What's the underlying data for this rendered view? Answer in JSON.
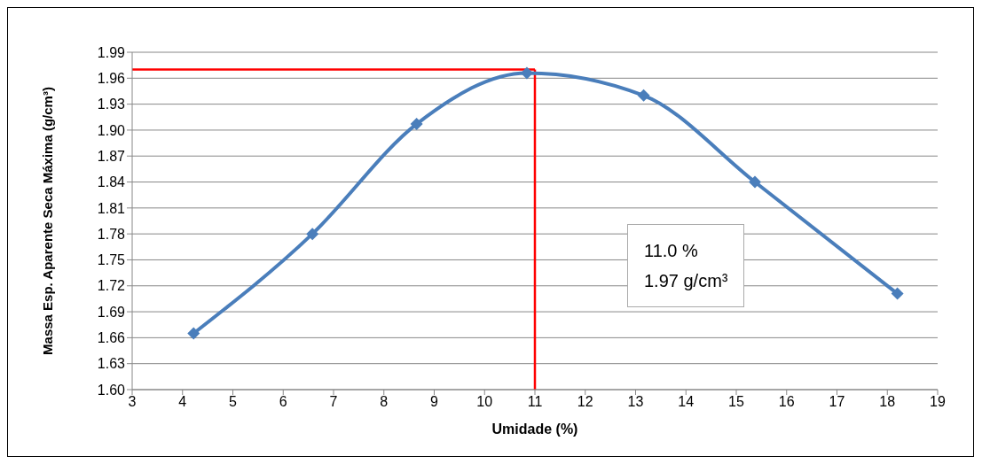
{
  "chart_data": {
    "type": "line",
    "xlabel": "Umidade (%)",
    "ylabel": "Massa Esp. Aparente Seca Máxima (g/cm³)",
    "x": [
      4.22,
      6.58,
      8.65,
      10.84,
      13.16,
      15.37,
      18.2
    ],
    "series": [
      {
        "color": "#4a7ebb",
        "values": [
          1.665,
          1.78,
          1.907,
          1.966,
          1.94,
          1.84,
          1.711
        ]
      }
    ],
    "xlim": [
      3,
      19
    ],
    "xticks": [
      3,
      4,
      5,
      6,
      7,
      8,
      9,
      10,
      11,
      12,
      13,
      14,
      15,
      16,
      17,
      18,
      19
    ],
    "ylim": [
      1.6,
      1.99
    ],
    "yticks": [
      {
        "value": 1.6,
        "label": "1.60"
      },
      1.63,
      1.66,
      1.69,
      1.72,
      1.75,
      1.78,
      1.81,
      1.84,
      1.87,
      {
        "value": 1.9,
        "label": "1.90"
      },
      1.93,
      1.96,
      1.99
    ],
    "ref_lines": [
      {
        "axis": "x",
        "value": 11,
        "color": "#ff0000"
      },
      {
        "axis": "y",
        "value": 1.97,
        "color": "#ff0000"
      }
    ],
    "annotations": [
      "11.0 %",
      "1.97 g/cm³"
    ],
    "grid": "y",
    "marker": "diamond",
    "line_style": "solid"
  }
}
